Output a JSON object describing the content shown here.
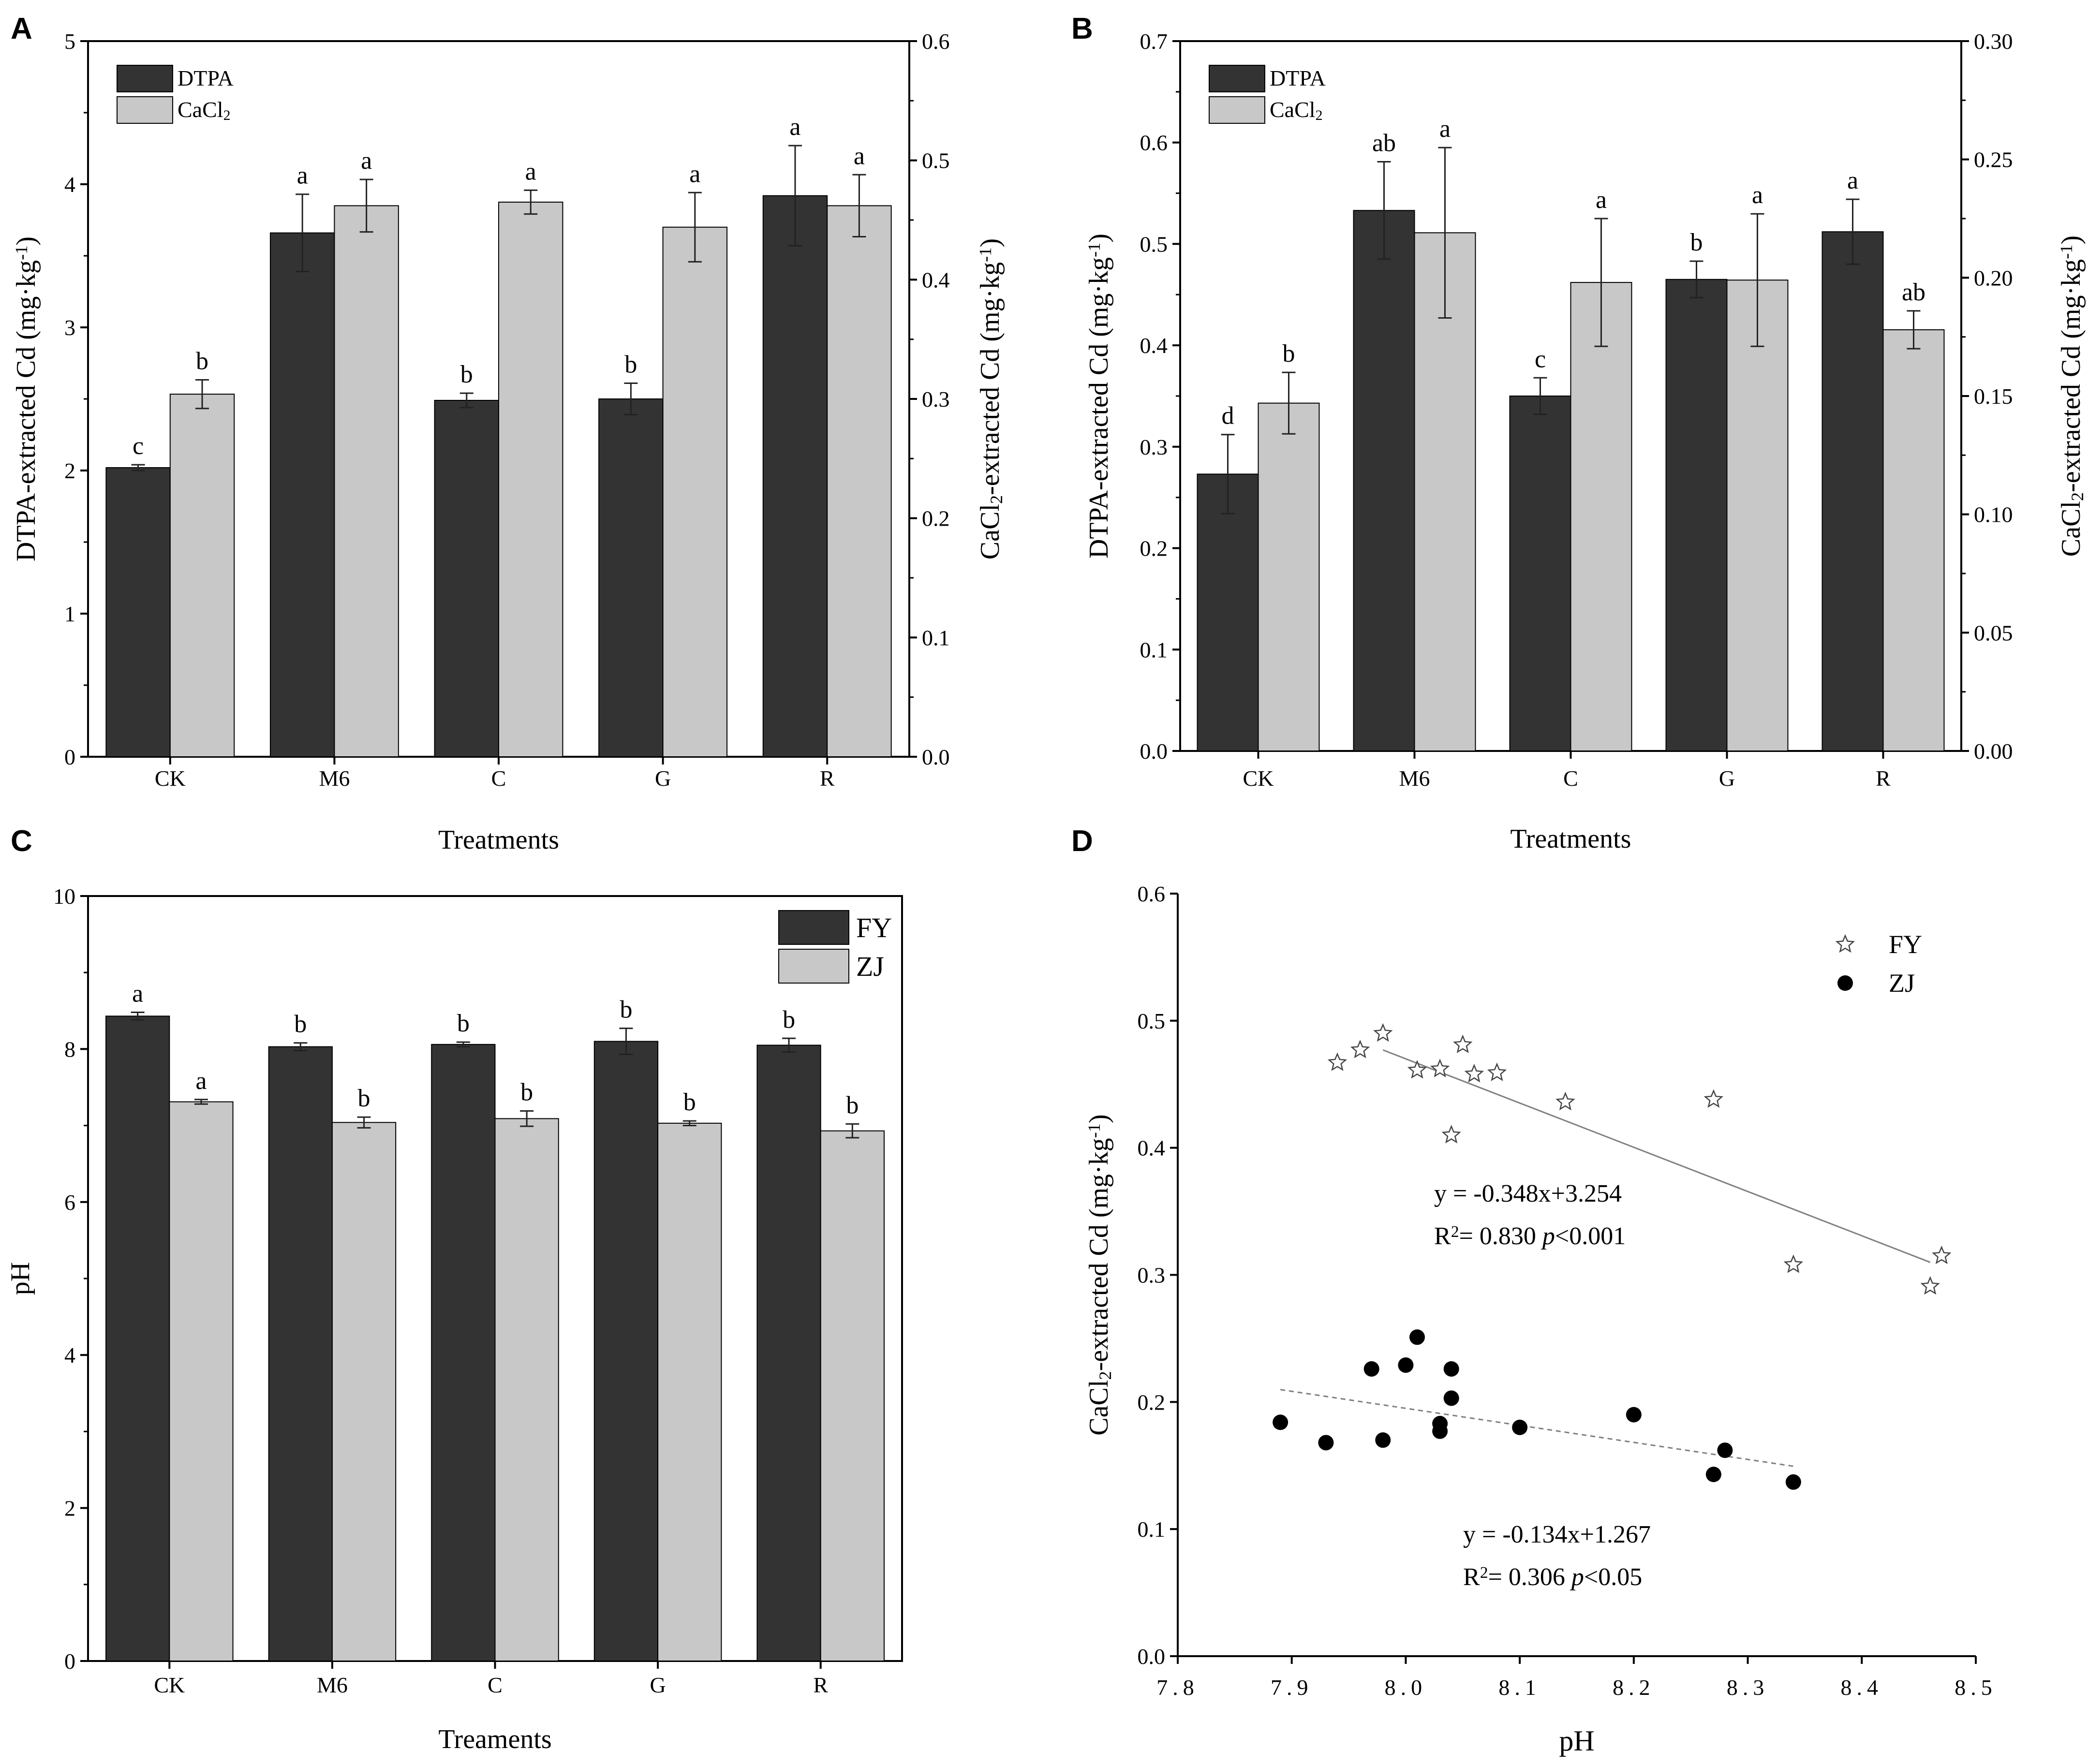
{
  "colors": {
    "dark": "#333333",
    "light": "#c8c8c8",
    "axis": "#000000",
    "fit": "#808080",
    "white": "#ffffff"
  },
  "chart_data": [
    {
      "panel": "A",
      "type": "bar",
      "xlabel": "Treatments",
      "ylabel_left": "DTPA-extracted Cd (mg·kg⁻¹)",
      "ylabel_right": "CaCl₂-extracted Cd (mg·kg⁻¹)",
      "categories": [
        "CK",
        "M6",
        "C",
        "G",
        "R"
      ],
      "ylim_left": [
        0,
        5
      ],
      "ylim_right": [
        0,
        0.6
      ],
      "yticks_left": [
        "0",
        "1",
        "2",
        "3",
        "4",
        "5"
      ],
      "yticks_right": [
        "0.0",
        "0.1",
        "0.2",
        "0.3",
        "0.4",
        "0.5",
        "0.6"
      ],
      "legend": [
        "DTPA",
        "CaCl₂"
      ],
      "legend_position": "top-left",
      "series": [
        {
          "name": "DTPA",
          "axis": "left",
          "values": [
            2.02,
            3.66,
            2.49,
            2.5,
            3.92
          ],
          "errors": [
            0.02,
            0.27,
            0.05,
            0.11,
            0.35
          ],
          "letters": [
            "c",
            "a",
            "b",
            "b",
            "a"
          ]
        },
        {
          "name": "CaCl₂",
          "axis": "right",
          "values": [
            0.304,
            0.462,
            0.465,
            0.444,
            0.462
          ],
          "errors": [
            0.012,
            0.022,
            0.01,
            0.029,
            0.026
          ],
          "letters": [
            "b",
            "a",
            "a",
            "a",
            "a"
          ]
        }
      ]
    },
    {
      "panel": "B",
      "type": "bar",
      "xlabel": "Treatments",
      "ylabel_left": "DTPA-extracted Cd (mg·kg⁻¹)",
      "ylabel_right": "CaCl₂-extracted Cd (mg·kg⁻¹)",
      "categories": [
        "CK",
        "M6",
        "C",
        "G",
        "R"
      ],
      "ylim_left": [
        0,
        0.7
      ],
      "ylim_right": [
        0,
        0.3
      ],
      "yticks_left": [
        "0.0",
        "0.1",
        "0.2",
        "0.3",
        "0.4",
        "0.5",
        "0.6",
        "0.7"
      ],
      "yticks_right": [
        "0.00",
        "0.05",
        "0.10",
        "0.15",
        "0.20",
        "0.25",
        "0.30"
      ],
      "legend": [
        "DTPA",
        "CaCl₂"
      ],
      "legend_position": "top-left",
      "series": [
        {
          "name": "DTPA",
          "axis": "left",
          "values": [
            0.273,
            0.533,
            0.35,
            0.465,
            0.512
          ],
          "errors": [
            0.039,
            0.048,
            0.018,
            0.018,
            0.032
          ],
          "letters": [
            "d",
            "ab",
            "c",
            "b",
            "a"
          ]
        },
        {
          "name": "CaCl₂",
          "axis": "right",
          "values": [
            0.147,
            0.219,
            0.198,
            0.199,
            0.178
          ],
          "errors": [
            0.013,
            0.036,
            0.027,
            0.028,
            0.008
          ],
          "letters": [
            "b",
            "a",
            "a",
            "a",
            "ab"
          ]
        }
      ]
    },
    {
      "panel": "C",
      "type": "bar",
      "xlabel": "Treaments",
      "ylabel": "pH",
      "categories": [
        "CK",
        "M6",
        "C",
        "G",
        "R"
      ],
      "ylim": [
        0,
        10
      ],
      "yticks": [
        "0",
        "2",
        "4",
        "6",
        "8",
        "10"
      ],
      "legend": [
        "FY",
        "ZJ"
      ],
      "legend_position": "top-right",
      "series": [
        {
          "name": "FY",
          "values": [
            8.43,
            8.03,
            8.06,
            8.1,
            8.05
          ],
          "errors": [
            0.05,
            0.05,
            0.03,
            0.17,
            0.09
          ],
          "letters": [
            "a",
            "b",
            "b",
            "b",
            "b"
          ]
        },
        {
          "name": "ZJ",
          "values": [
            7.31,
            7.04,
            7.09,
            7.03,
            6.93
          ],
          "errors": [
            0.03,
            0.07,
            0.1,
            0.03,
            0.09
          ],
          "letters": [
            "a",
            "b",
            "b",
            "b",
            "b"
          ]
        }
      ]
    },
    {
      "panel": "D",
      "type": "scatter",
      "xlabel": "pH",
      "ylabel": "CaCl₂-extracted Cd (mg·kg⁻¹)",
      "xlim": [
        7.8,
        8.5
      ],
      "ylim": [
        0.0,
        0.6
      ],
      "xticks": [
        "7.8",
        "7.9",
        "8.0",
        "8.1",
        "8.2",
        "8.3",
        "8.4",
        "8.5"
      ],
      "yticks": [
        "0.0",
        "0.1",
        "0.2",
        "0.3",
        "0.4",
        "0.5",
        "0.6"
      ],
      "legend": [
        "FY",
        "ZJ"
      ],
      "legend_position": "top-right",
      "series": [
        {
          "name": "FY",
          "marker": "star",
          "x": [
            7.94,
            7.96,
            7.98,
            8.01,
            8.03,
            8.05,
            8.06,
            8.08,
            8.04,
            8.14,
            8.27,
            8.34,
            8.46,
            8.47
          ],
          "y": [
            0.467,
            0.477,
            0.49,
            0.461,
            0.462,
            0.481,
            0.458,
            0.459,
            0.41,
            0.436,
            0.438,
            0.308,
            0.291,
            0.315
          ],
          "fit": {
            "slope": -0.348,
            "intercept": 3.254,
            "x_range": [
              7.98,
              8.46
            ],
            "style": "solid"
          },
          "equation": "y = -0.348x+3.254",
          "r2_prefix": "R",
          "r2_text": "= 0.830",
          "p_label": "p",
          "p_text": "<0.001"
        },
        {
          "name": "ZJ",
          "marker": "circle",
          "x": [
            7.89,
            7.93,
            7.97,
            7.98,
            8.0,
            8.01,
            8.03,
            8.03,
            8.04,
            8.04,
            8.1,
            8.2,
            8.27,
            8.28,
            8.34
          ],
          "y": [
            0.184,
            0.168,
            0.226,
            0.17,
            0.229,
            0.251,
            0.183,
            0.177,
            0.226,
            0.203,
            0.18,
            0.19,
            0.143,
            0.162,
            0.137
          ],
          "fit": {
            "slope": -0.134,
            "intercept": 1.267,
            "x_range": [
              7.89,
              8.34
            ],
            "style": "dashed"
          },
          "equation": "y = -0.134x+1.267",
          "r2_prefix": "R",
          "r2_text": "= 0.306",
          "p_label": "p",
          "p_text": "<0.05"
        }
      ]
    }
  ]
}
